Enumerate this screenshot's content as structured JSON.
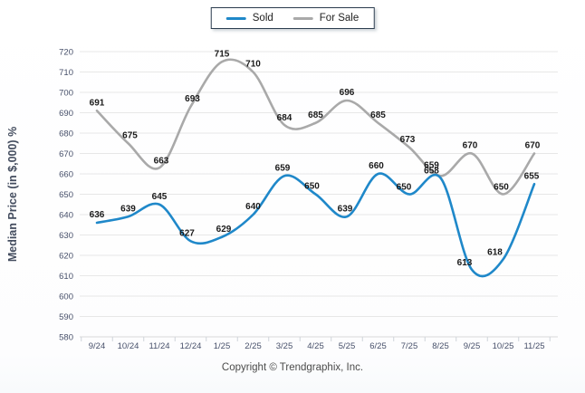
{
  "chart_data": {
    "type": "line",
    "smooth": true,
    "grid": true,
    "legend_position": "top-center",
    "categories": [
      "9/24",
      "10/24",
      "11/24",
      "12/24",
      "1/25",
      "2/25",
      "3/25",
      "4/25",
      "5/25",
      "6/25",
      "7/25",
      "8/25",
      "9/25",
      "10/25",
      "11/25"
    ],
    "series": [
      {
        "name": "Sold",
        "color": "#1f88c9",
        "values": [
          636,
          639,
          645,
          627,
          629,
          640,
          659,
          650,
          639,
          660,
          650,
          658,
          613,
          618,
          655
        ],
        "label_offsets": [
          [
            0,
            -6
          ],
          [
            0,
            -6
          ],
          [
            0,
            -6
          ],
          [
            -4,
            -6
          ],
          [
            2,
            -6
          ],
          [
            0,
            -6
          ],
          [
            -2,
            -6
          ],
          [
            -4,
            -6
          ],
          [
            -2,
            -6
          ],
          [
            -2,
            -6
          ],
          [
            -6,
            -5
          ],
          [
            -10,
            -5
          ],
          [
            -8,
            -5
          ],
          [
            -9,
            -5
          ],
          [
            -3,
            -6
          ]
        ]
      },
      {
        "name": "For Sale",
        "color": "#a9a9a9",
        "values": [
          691,
          675,
          663,
          693,
          715,
          710,
          684,
          685,
          696,
          685,
          673,
          659,
          670,
          650,
          670
        ],
        "label_offsets": [
          [
            0,
            -6
          ],
          [
            2,
            -6
          ],
          [
            2,
            -5
          ],
          [
            2,
            -6
          ],
          [
            0,
            -6
          ],
          [
            0,
            -6
          ],
          [
            0,
            -5
          ],
          [
            0,
            -6
          ],
          [
            0,
            -6
          ],
          [
            0,
            -6
          ],
          [
            -2,
            -6
          ],
          [
            -10,
            -9
          ],
          [
            -2,
            -6
          ],
          [
            -2,
            -5
          ],
          [
            -2,
            -6
          ]
        ]
      }
    ],
    "ylabel": "Median Price (in $,000) %",
    "xlabel": "",
    "title": "",
    "ylim": [
      580,
      720
    ],
    "ytick_step": 10
  },
  "colors": {
    "grid": "#e7e7e7",
    "axis_line": "#d9d9d9",
    "tick_mark": "#cfd4da",
    "axis_text": "#47506a",
    "label_text": "#1a1a1a",
    "ylabel_text": "#434c5e"
  },
  "footer": {
    "copyright": "Copyright © Trendgraphix, Inc."
  }
}
